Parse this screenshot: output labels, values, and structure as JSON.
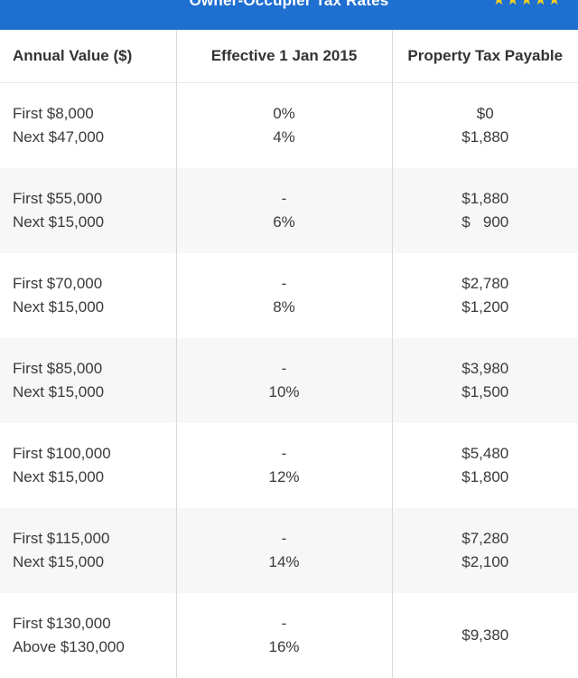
{
  "banner": {
    "title": "Owner-Occupier Tax Rates",
    "deco": "★★★★★"
  },
  "colors": {
    "banner": "#1f6fd1",
    "deco": "#f5d21e"
  },
  "headers": [
    "Annual Value ($)",
    "Effective 1 Jan 2015",
    "Property Tax Payable"
  ],
  "rows": [
    {
      "value": [
        "First $8,000",
        "Next $47,000"
      ],
      "rate": [
        "0%",
        "4%"
      ],
      "tax": [
        "$0",
        "$1,880"
      ]
    },
    {
      "value": [
        "First $55,000",
        "Next $15,000"
      ],
      "rate": [
        "-",
        "6%"
      ],
      "tax": [
        "$1,880",
        "$   900"
      ]
    },
    {
      "value": [
        "First $70,000",
        "Next $15,000"
      ],
      "rate": [
        "-",
        "8%"
      ],
      "tax": [
        "$2,780",
        "$1,200"
      ]
    },
    {
      "value": [
        "First $85,000",
        "Next $15,000"
      ],
      "rate": [
        "-",
        "10%"
      ],
      "tax": [
        "$3,980",
        "$1,500"
      ]
    },
    {
      "value": [
        "First $100,000",
        "Next $15,000"
      ],
      "rate": [
        "-",
        "12%"
      ],
      "tax": [
        "$5,480",
        "$1,800"
      ]
    },
    {
      "value": [
        "First $115,000",
        "Next $15,000"
      ],
      "rate": [
        "-",
        "14%"
      ],
      "tax": [
        "$7,280",
        "$2,100"
      ]
    },
    {
      "value": [
        "First $130,000",
        "Above $130,000"
      ],
      "rate": [
        "-",
        "16%"
      ],
      "tax": [
        "$9,380",
        ""
      ]
    }
  ]
}
